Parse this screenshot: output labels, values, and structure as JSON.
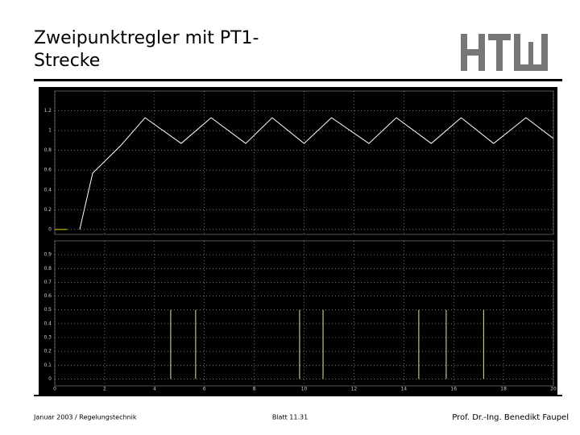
{
  "header": {
    "title_lines": [
      "Zweipunktregler mit PT1-",
      "Strecke"
    ]
  },
  "footer": {
    "left": "Januar 2003 / Regelungstechnik",
    "center": "Blatt 11.31",
    "right": "Prof. Dr.-Ing. Benedikt Faupel"
  },
  "chart_data": [
    {
      "type": "line",
      "series": [
        {
          "color": "#ffffff",
          "x": [
            1,
            1.52,
            2.65,
            3.62,
            5.07,
            6.27,
            7.66,
            8.72,
            10.0,
            11.1,
            12.6,
            13.7,
            15.1,
            16.3,
            17.6,
            18.9,
            20
          ],
          "values": [
            0,
            0.57,
            0.85,
            1.13,
            0.87,
            1.13,
            0.87,
            1.13,
            0.87,
            1.13,
            0.87,
            1.13,
            0.87,
            1.13,
            0.87,
            1.13,
            0.92
          ]
        },
        {
          "color": "#e0e000",
          "x": [
            0,
            0.5
          ],
          "values": [
            0,
            0
          ]
        }
      ],
      "xlim": [
        0,
        20
      ],
      "ylim": [
        -0.05,
        1.4
      ],
      "xticks": [
        0,
        2,
        4,
        6,
        8,
        10,
        12,
        14,
        16,
        18,
        20
      ],
      "yticks": [
        0,
        0.2,
        0.4,
        0.6,
        0.8,
        1,
        1.2
      ],
      "grid": true
    },
    {
      "type": "stem",
      "x": [
        4.65,
        5.65,
        9.82,
        10.76,
        14.6,
        15.7,
        17.2
      ],
      "values": [
        0.5,
        0.5,
        0.5,
        0.5,
        0.5,
        0.5,
        0.5
      ],
      "color": "#e8e8a0",
      "xlim": [
        0,
        20
      ],
      "ylim": [
        -0.05,
        1.0
      ],
      "xticks": [
        0,
        2,
        4,
        6,
        8,
        10,
        12,
        14,
        16,
        18,
        20
      ],
      "yticks": [
        0,
        0.1,
        0.2,
        0.3,
        0.4,
        0.5,
        0.6,
        0.7,
        0.8,
        0.9
      ],
      "grid": true
    }
  ]
}
